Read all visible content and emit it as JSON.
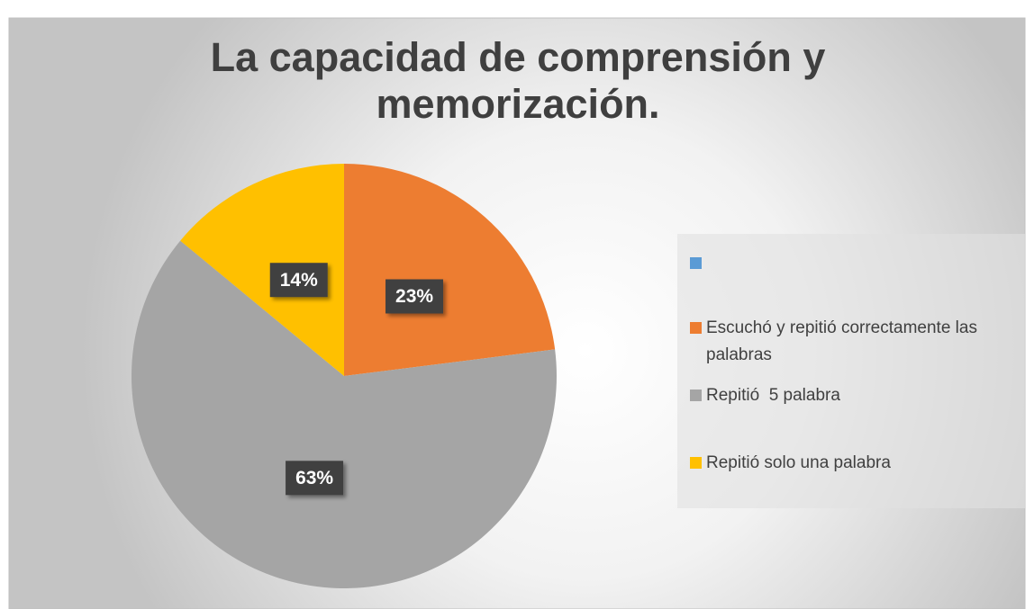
{
  "chart_data": {
    "type": "pie",
    "title": "La capacidad de comprensión y memorización.",
    "categories": [
      null,
      "Escuchó y repitió correctamente las palabras",
      "Repitió  5 palabra",
      "Repitió solo una palabra"
    ],
    "values": [
      0,
      23,
      63,
      14
    ],
    "value_labels": [
      null,
      "23%",
      "63%",
      "14%"
    ],
    "colors": [
      "#5b9bd5",
      "#ed7d31",
      "#a5a5a5",
      "#ffc000"
    ],
    "legend": "right"
  }
}
